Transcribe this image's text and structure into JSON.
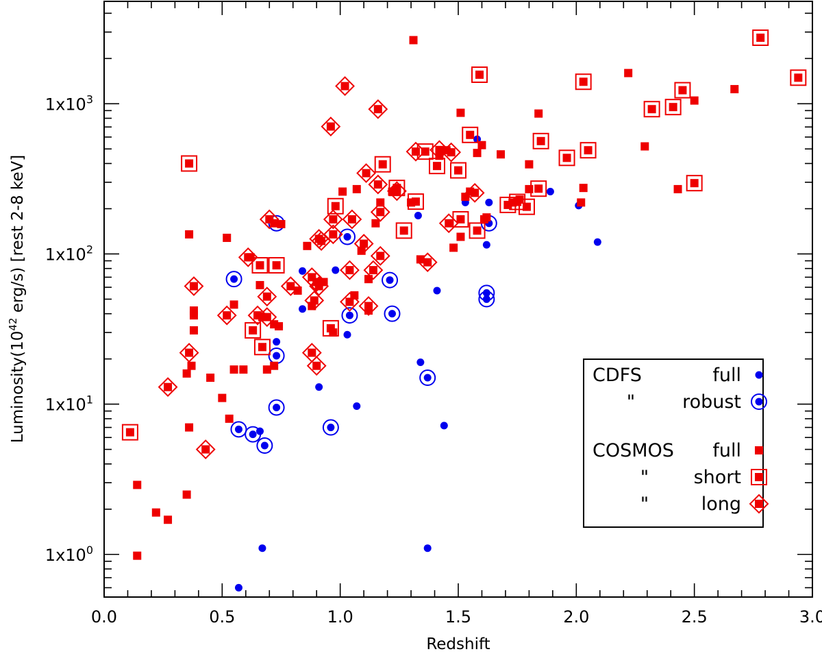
{
  "chart_data": {
    "type": "scatter",
    "title": "",
    "xlabel": "Redshift",
    "ylabel_parts": {
      "prefix": "Luminosity(10",
      "exp": "42",
      "suffix": " erg/s) [rest 2-8 keV]"
    },
    "xlim": [
      0.0,
      3.0
    ],
    "ylim": [
      0.52,
      4800
    ],
    "yscale": "log",
    "x_ticks": [
      0.0,
      0.5,
      1.0,
      1.5,
      2.0,
      2.5,
      3.0
    ],
    "x_tick_labels": [
      "0.0",
      "0.5",
      "1.0",
      "1.5",
      "2.0",
      "2.5",
      "3.0"
    ],
    "y_ticks": [
      1,
      10,
      100,
      1000
    ],
    "y_tick_labels": [
      {
        "mant": "1x10",
        "exp": "0"
      },
      {
        "mant": "1x10",
        "exp": "1"
      },
      {
        "mant": "1x10",
        "exp": "2"
      },
      {
        "mant": "1x10",
        "exp": "3"
      }
    ],
    "colors": {
      "cdfs": "#0000ee",
      "cosmos": "#ee0000"
    },
    "legend": {
      "position": "lower-right",
      "entries": [
        {
          "col1": "CDFS",
          "col2": "full",
          "marker": "dot"
        },
        {
          "col1": "\"",
          "col2": "robust",
          "marker": "ring"
        },
        {
          "col1": "COSMOS",
          "col2": "full",
          "marker": "square"
        },
        {
          "col1": "\"",
          "col2": "short",
          "marker": "boxed"
        },
        {
          "col1": "\"",
          "col2": "long",
          "marker": "diamond"
        }
      ]
    },
    "series": [
      {
        "name": "CDFS full",
        "marker": "dot",
        "points": [
          [
            0.57,
            0.6
          ],
          [
            0.67,
            1.1
          ],
          [
            1.37,
            1.1
          ],
          [
            0.73,
            26
          ],
          [
            0.91,
            13
          ],
          [
            1.03,
            29
          ],
          [
            1.07,
            9.7
          ],
          [
            1.34,
            19
          ],
          [
            1.44,
            7.2
          ],
          [
            1.41,
            57
          ],
          [
            0.84,
            43
          ],
          [
            0.98,
            78
          ],
          [
            0.84,
            77
          ],
          [
            1.33,
            180
          ],
          [
            1.53,
            220
          ],
          [
            1.58,
            580
          ],
          [
            1.63,
            220
          ],
          [
            1.62,
            115
          ],
          [
            1.62,
            170
          ],
          [
            1.89,
            260
          ],
          [
            2.01,
            210
          ],
          [
            2.09,
            120
          ],
          [
            0.66,
            6.6
          ],
          [
            0.55,
            68
          ],
          [
            0.73,
            160
          ],
          [
            1.03,
            130
          ],
          [
            1.21,
            67
          ],
          [
            1.22,
            40
          ],
          [
            1.04,
            39
          ],
          [
            0.73,
            21
          ],
          [
            0.73,
            9.5
          ],
          [
            0.96,
            7
          ],
          [
            0.57,
            6.8
          ],
          [
            0.63,
            6.3
          ],
          [
            0.68,
            5.3
          ],
          [
            1.62,
            55
          ],
          [
            1.62,
            50
          ],
          [
            1.37,
            15
          ],
          [
            1.63,
            160
          ]
        ]
      },
      {
        "name": "CDFS robust",
        "marker": "ring",
        "points": [
          [
            0.55,
            68
          ],
          [
            0.73,
            160
          ],
          [
            1.03,
            130
          ],
          [
            1.21,
            67
          ],
          [
            1.22,
            40
          ],
          [
            1.04,
            39
          ],
          [
            0.73,
            21
          ],
          [
            0.73,
            9.5
          ],
          [
            0.96,
            7
          ],
          [
            0.57,
            6.8
          ],
          [
            0.63,
            6.3
          ],
          [
            0.68,
            5.3
          ],
          [
            1.62,
            55
          ],
          [
            1.62,
            50
          ],
          [
            1.37,
            15
          ],
          [
            1.63,
            160
          ]
        ]
      },
      {
        "name": "COSMOS full",
        "marker": "square",
        "points": [
          [
            0.14,
            0.98
          ],
          [
            0.14,
            2.9
          ],
          [
            0.22,
            1.9
          ],
          [
            0.27,
            1.7
          ],
          [
            0.35,
            2.5
          ],
          [
            0.36,
            7
          ],
          [
            0.37,
            18
          ],
          [
            0.35,
            16
          ],
          [
            0.38,
            42
          ],
          [
            0.38,
            39
          ],
          [
            0.38,
            31
          ],
          [
            0.45,
            15
          ],
          [
            0.5,
            11
          ],
          [
            0.52,
            128
          ],
          [
            0.53,
            8
          ],
          [
            0.55,
            46
          ],
          [
            0.55,
            17
          ],
          [
            0.59,
            17
          ],
          [
            0.62,
            95
          ],
          [
            0.66,
            62
          ],
          [
            0.67,
            38
          ],
          [
            0.69,
            17
          ],
          [
            0.72,
            34
          ],
          [
            0.72,
            18
          ],
          [
            0.74,
            33
          ],
          [
            0.75,
            158
          ],
          [
            0.82,
            57
          ],
          [
            0.86,
            113
          ],
          [
            0.88,
            45
          ],
          [
            0.93,
            65
          ],
          [
            0.97,
            30
          ],
          [
            1.01,
            260
          ],
          [
            1.06,
            53
          ],
          [
            1.07,
            270
          ],
          [
            1.09,
            105
          ],
          [
            1.12,
            42
          ],
          [
            1.12,
            68
          ],
          [
            1.15,
            160
          ],
          [
            1.17,
            220
          ],
          [
            1.22,
            260
          ],
          [
            1.3,
            220
          ],
          [
            1.31,
            2650
          ],
          [
            1.34,
            92
          ],
          [
            1.42,
            450
          ],
          [
            1.45,
            490
          ],
          [
            1.48,
            110
          ],
          [
            1.51,
            130
          ],
          [
            1.51,
            870
          ],
          [
            1.53,
            240
          ],
          [
            1.55,
            260
          ],
          [
            1.58,
            470
          ],
          [
            1.6,
            530
          ],
          [
            1.68,
            460
          ],
          [
            1.73,
            220
          ],
          [
            1.76,
            230
          ],
          [
            1.8,
            270
          ],
          [
            1.8,
            395
          ],
          [
            1.84,
            860
          ],
          [
            2.02,
            220
          ],
          [
            2.03,
            275
          ],
          [
            2.22,
            1600
          ],
          [
            2.29,
            520
          ],
          [
            2.43,
            270
          ],
          [
            2.5,
            1050
          ],
          [
            2.67,
            1250
          ],
          [
            0.36,
            135
          ],
          [
            1.61,
            170
          ],
          [
            1.62,
            175
          ],
          [
            0.72,
            160
          ],
          [
            0.11,
            6.5
          ],
          [
            0.36,
            400
          ],
          [
            0.63,
            31
          ],
          [
            0.66,
            84
          ],
          [
            0.67,
            24
          ],
          [
            0.73,
            84
          ],
          [
            0.96,
            32
          ],
          [
            0.98,
            208
          ],
          [
            1.18,
            395
          ],
          [
            1.24,
            275
          ],
          [
            1.27,
            143
          ],
          [
            1.32,
            223
          ],
          [
            1.36,
            480
          ],
          [
            1.41,
            385
          ],
          [
            1.5,
            360
          ],
          [
            1.51,
            170
          ],
          [
            1.55,
            620
          ],
          [
            1.58,
            143
          ],
          [
            1.59,
            1560
          ],
          [
            1.71,
            212
          ],
          [
            1.75,
            222
          ],
          [
            1.79,
            206
          ],
          [
            1.85,
            564
          ],
          [
            1.84,
            272
          ],
          [
            1.96,
            436
          ],
          [
            2.03,
            1400
          ],
          [
            2.05,
            490
          ],
          [
            2.32,
            920
          ],
          [
            2.41,
            950
          ],
          [
            2.45,
            1230
          ],
          [
            2.5,
            296
          ],
          [
            2.78,
            2750
          ],
          [
            2.94,
            1490
          ],
          [
            0.27,
            13
          ],
          [
            0.36,
            22
          ],
          [
            0.38,
            61
          ],
          [
            0.43,
            5
          ],
          [
            0.52,
            39
          ],
          [
            0.61,
            95
          ],
          [
            0.65,
            39
          ],
          [
            0.69,
            52
          ],
          [
            0.69,
            38
          ],
          [
            0.7,
            170
          ],
          [
            0.79,
            61
          ],
          [
            0.88,
            70
          ],
          [
            0.88,
            22
          ],
          [
            0.89,
            49
          ],
          [
            0.9,
            18
          ],
          [
            0.9,
            65
          ],
          [
            0.91,
            126
          ],
          [
            0.92,
            122
          ],
          [
            0.91,
            61
          ],
          [
            0.96,
            705
          ],
          [
            0.97,
            170
          ],
          [
            0.97,
            135
          ],
          [
            1.02,
            1310
          ],
          [
            1.04,
            78
          ],
          [
            1.05,
            170
          ],
          [
            1.04,
            48
          ],
          [
            1.1,
            117
          ],
          [
            1.11,
            345
          ],
          [
            1.12,
            45
          ],
          [
            1.14,
            78
          ],
          [
            1.16,
            920
          ],
          [
            1.16,
            290
          ],
          [
            1.17,
            190
          ],
          [
            1.17,
            97
          ],
          [
            1.24,
            262
          ],
          [
            1.32,
            480
          ],
          [
            1.37,
            88
          ],
          [
            1.42,
            492
          ],
          [
            1.46,
            160
          ],
          [
            1.47,
            475
          ],
          [
            1.57,
            255
          ]
        ]
      },
      {
        "name": "COSMOS short",
        "marker": "boxed",
        "points": [
          [
            0.11,
            6.5
          ],
          [
            0.36,
            400
          ],
          [
            0.63,
            31
          ],
          [
            0.66,
            84
          ],
          [
            0.67,
            24
          ],
          [
            0.73,
            84
          ],
          [
            0.96,
            32
          ],
          [
            0.98,
            208
          ],
          [
            1.18,
            395
          ],
          [
            1.24,
            275
          ],
          [
            1.27,
            143
          ],
          [
            1.32,
            223
          ],
          [
            1.36,
            480
          ],
          [
            1.41,
            385
          ],
          [
            1.5,
            360
          ],
          [
            1.51,
            170
          ],
          [
            1.55,
            620
          ],
          [
            1.58,
            143
          ],
          [
            1.59,
            1560
          ],
          [
            1.71,
            212
          ],
          [
            1.75,
            222
          ],
          [
            1.79,
            206
          ],
          [
            1.85,
            564
          ],
          [
            1.84,
            272
          ],
          [
            1.96,
            436
          ],
          [
            2.03,
            1400
          ],
          [
            2.05,
            490
          ],
          [
            2.32,
            920
          ],
          [
            2.41,
            950
          ],
          [
            2.45,
            1230
          ],
          [
            2.5,
            296
          ],
          [
            2.78,
            2750
          ],
          [
            2.94,
            1490
          ]
        ]
      },
      {
        "name": "COSMOS long",
        "marker": "diamond",
        "points": [
          [
            0.27,
            13
          ],
          [
            0.36,
            22
          ],
          [
            0.38,
            61
          ],
          [
            0.43,
            5
          ],
          [
            0.52,
            39
          ],
          [
            0.61,
            95
          ],
          [
            0.65,
            39
          ],
          [
            0.69,
            52
          ],
          [
            0.69,
            38
          ],
          [
            0.7,
            170
          ],
          [
            0.79,
            61
          ],
          [
            0.88,
            70
          ],
          [
            0.88,
            22
          ],
          [
            0.89,
            49
          ],
          [
            0.9,
            18
          ],
          [
            0.9,
            65
          ],
          [
            0.91,
            126
          ],
          [
            0.92,
            122
          ],
          [
            0.91,
            61
          ],
          [
            0.96,
            705
          ],
          [
            0.97,
            170
          ],
          [
            0.97,
            135
          ],
          [
            1.02,
            1310
          ],
          [
            1.04,
            78
          ],
          [
            1.05,
            170
          ],
          [
            1.04,
            48
          ],
          [
            1.1,
            117
          ],
          [
            1.11,
            345
          ],
          [
            1.12,
            45
          ],
          [
            1.14,
            78
          ],
          [
            1.16,
            920
          ],
          [
            1.16,
            290
          ],
          [
            1.17,
            190
          ],
          [
            1.17,
            97
          ],
          [
            1.24,
            262
          ],
          [
            1.32,
            480
          ],
          [
            1.37,
            88
          ],
          [
            1.42,
            492
          ],
          [
            1.46,
            160
          ],
          [
            1.47,
            475
          ],
          [
            1.57,
            255
          ]
        ]
      }
    ]
  }
}
